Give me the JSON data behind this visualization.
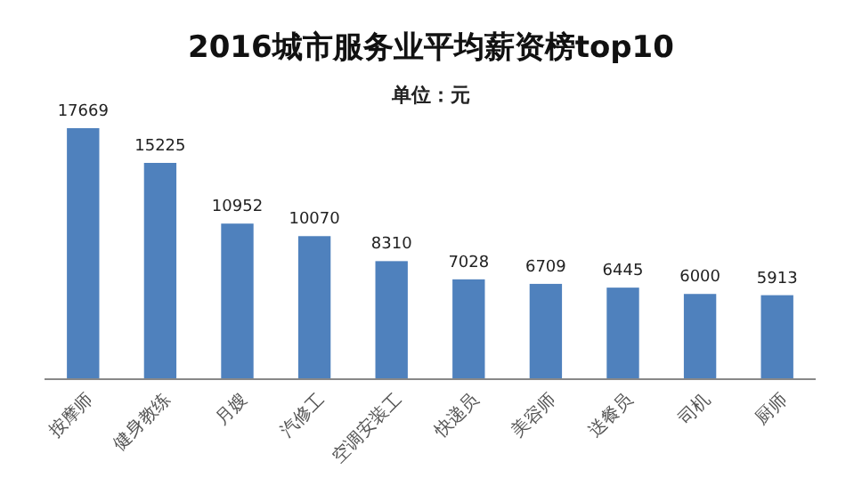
{
  "chart_data": {
    "type": "bar",
    "title": "2016城市服务业平均薪资榜top10",
    "subtitle": "单位：元",
    "categories": [
      "按摩师",
      "健身教练",
      "月嫂",
      "汽修工",
      "空调安装工",
      "快递员",
      "美容师",
      "送餐员",
      "司机",
      "厨师"
    ],
    "values": [
      17669,
      15225,
      10952,
      10070,
      8310,
      7028,
      6709,
      6445,
      6000,
      5913
    ],
    "color": "#4f81bd",
    "data_labels": true
  }
}
